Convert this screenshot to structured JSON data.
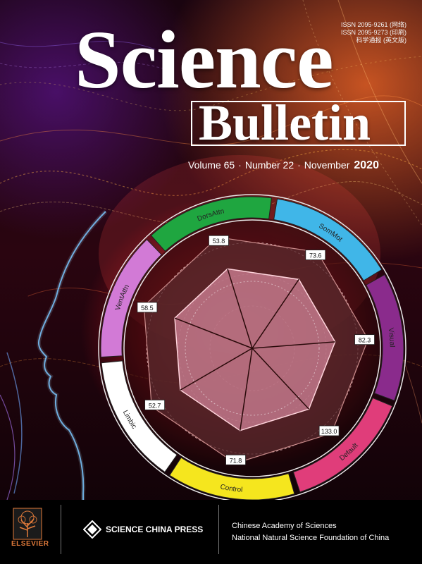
{
  "cover": {
    "issn_print": "ISSN 2095-9261 (网络)",
    "issn_online": "ISSN 2095-9273 (印刷)",
    "chinese_title": "科学通报 (英文版)",
    "title_science": "Science",
    "title_bulletin": "Bulletin",
    "volume": "Volume 65",
    "number": "Number 22",
    "month": "November",
    "year": "2020",
    "separator": "·"
  },
  "radar": {
    "networks": [
      "DorsAttn",
      "SomMot",
      "Visual",
      "Default",
      "Control",
      "Limbic",
      "VentAttn"
    ],
    "values": [
      "53.8",
      "73.6",
      "82.3",
      "133.0",
      "71.8",
      "52.7",
      "58.5"
    ],
    "segment_colors": [
      "#1fa640",
      "#40b6e8",
      "#8a2b8c",
      "#e03d7a",
      "#f5e61e",
      "#ffffff",
      "#d27ad6"
    ]
  },
  "footer": {
    "publisher": "ELSEVIER",
    "press": "SCIENCE CHINA PRESS",
    "org1": "Chinese Academy of Sciences",
    "org2": "National Natural Science Foundation of China"
  },
  "icons": [
    "elsevier-tree-icon",
    "science-china-press-icon"
  ]
}
